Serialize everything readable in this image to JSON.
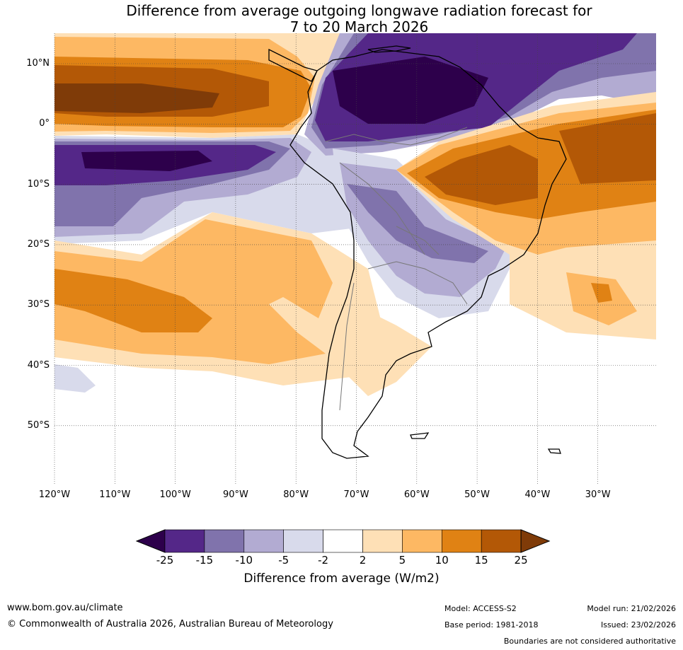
{
  "title": {
    "line1": "Difference from average outgoing longwave radiation forecast for",
    "line2": "7 to 20 March 2026"
  },
  "map": {
    "lat_labels": [
      "10°N",
      "0°",
      "10°S",
      "20°S",
      "30°S",
      "40°S",
      "50°S"
    ],
    "lon_labels": [
      "120°W",
      "110°W",
      "100°W",
      "90°W",
      "80°W",
      "70°W",
      "60°W",
      "50°W",
      "40°W",
      "30°W"
    ]
  },
  "colorbar": {
    "ticks": [
      "-25",
      "-15",
      "-10",
      "-5",
      "-2",
      "2",
      "5",
      "10",
      "15",
      "25"
    ],
    "colors": [
      "#2d004b",
      "#542788",
      "#8073ac",
      "#b2abd2",
      "#d8daeb",
      "#ffffff",
      "#fee0b6",
      "#fdb863",
      "#e08214",
      "#b35806",
      "#7f3b08"
    ],
    "label": "Difference from average (W/m2)"
  },
  "footer": {
    "url": "www.bom.gov.au/climate",
    "copyright": "© Commonwealth of Australia 2026, Australian Bureau of Meteorology",
    "model": "Model: ACCESS-S2",
    "model_run": "Model run: 21/02/2026",
    "base_period": "Base period: 1981-2018",
    "issued": "Issued: 23/02/2026",
    "disclaimer": "Boundaries are not considered authoritative"
  }
}
